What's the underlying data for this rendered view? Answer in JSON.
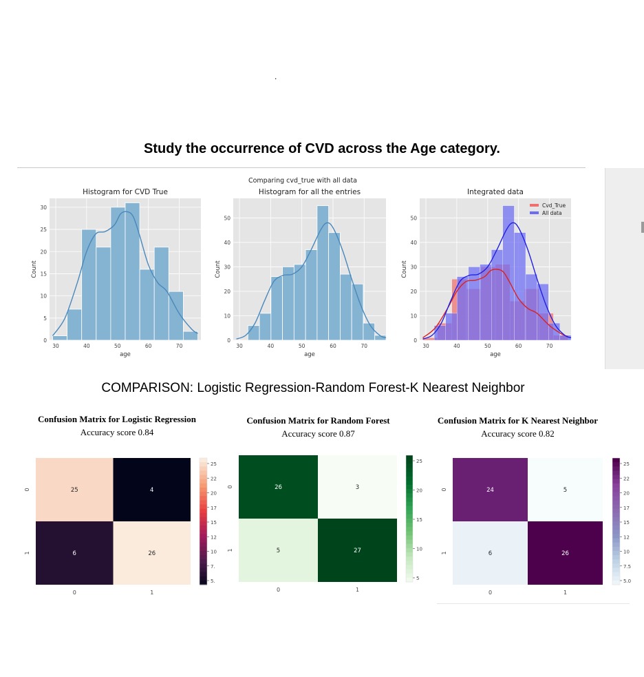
{
  "page": {
    "title": "Study the occurrence of CVD across the Age category.",
    "dot": ".",
    "comparison_heading": "COMPARISON: Logistic Regression-Random Forest-K Nearest Neighbor"
  },
  "colors": {
    "hist_bar": "#85b3d2",
    "hist_line": "#4a88bb",
    "axes_bg": "#e5e5e5",
    "red_series": "#ef6e6e",
    "blue_series": "#6c6cf5",
    "red_line": "#d92323",
    "blue_line": "#2020e0"
  },
  "chart_data": [
    {
      "type": "bar",
      "subtype": "histogram",
      "suptitle": "Comparing cvd_true with all data",
      "title": "Histogram for CVD True",
      "xlabel": "age",
      "ylabel": "Count",
      "xlim": [
        28,
        77
      ],
      "ylim": [
        0,
        32
      ],
      "xticks": [
        30,
        40,
        50,
        60,
        70
      ],
      "yticks": [
        0,
        5,
        10,
        15,
        20,
        25,
        30
      ],
      "bin_edges": [
        29,
        33.7,
        38.4,
        43.1,
        47.8,
        52.5,
        57.2,
        61.9,
        66.6,
        71.3,
        76
      ],
      "values": [
        1,
        7,
        25,
        21,
        30,
        31,
        16,
        21,
        11,
        2
      ],
      "kde": {
        "x": [
          29,
          33,
          37,
          40,
          43,
          46,
          49,
          51,
          53,
          55,
          57,
          60,
          63,
          66,
          70,
          74,
          76
        ],
        "y": [
          1,
          5,
          13,
          20,
          24,
          24.5,
          26,
          28.5,
          29,
          28,
          24,
          17,
          13,
          11,
          6,
          2.5,
          1.5
        ]
      },
      "grid": true
    },
    {
      "type": "bar",
      "subtype": "histogram",
      "title": "Histogram for all the entries",
      "xlabel": "age",
      "ylabel": "Count",
      "xlim": [
        28,
        77
      ],
      "ylim": [
        0,
        58
      ],
      "xticks": [
        30,
        40,
        50,
        60,
        70
      ],
      "yticks": [
        0,
        10,
        20,
        30,
        40,
        50
      ],
      "bin_edges": [
        29,
        32.7,
        36.4,
        40.1,
        43.8,
        47.5,
        51.2,
        54.9,
        58.6,
        62.3,
        66,
        69.7,
        73.4,
        77
      ],
      "values": [
        0,
        6,
        11,
        26,
        30,
        31,
        37,
        55,
        44,
        27,
        23,
        7,
        2
      ],
      "kde": {
        "x": [
          29,
          32,
          35,
          38,
          41,
          44,
          47,
          50,
          53,
          56,
          58,
          60,
          63,
          66,
          69,
          72,
          75,
          77
        ],
        "y": [
          0.5,
          2,
          7,
          16,
          24,
          26.5,
          27,
          30,
          37,
          45,
          48,
          46,
          37,
          25,
          14,
          6,
          2,
          1
        ]
      },
      "grid": true
    },
    {
      "type": "bar",
      "subtype": "histogram-overlay",
      "title": "Integrated data",
      "xlabel": "age",
      "ylabel": "Count",
      "xlim": [
        28,
        77
      ],
      "ylim": [
        0,
        58
      ],
      "xticks": [
        30,
        40,
        50,
        60,
        70
      ],
      "yticks": [
        0,
        10,
        20,
        30,
        40,
        50
      ],
      "legend_placement": "top-right",
      "series": [
        {
          "name": "Cvd_True",
          "bin_edges": [
            29,
            33.7,
            38.4,
            43.1,
            47.8,
            52.5,
            57.2,
            61.9,
            66.6,
            71.3,
            76
          ],
          "values": [
            1,
            7,
            25,
            21,
            30,
            31,
            16,
            21,
            11,
            2
          ],
          "kde": {
            "x": [
              29,
              33,
              37,
              40,
              43,
              46,
              49,
              51,
              53,
              55,
              57,
              60,
              63,
              66,
              70,
              74,
              76
            ],
            "y": [
              1,
              5,
              13,
              20,
              24,
              24.5,
              26,
              28.5,
              29,
              28,
              24,
              17,
              13,
              11,
              6,
              2.5,
              1.5
            ]
          }
        },
        {
          "name": "All data",
          "bin_edges": [
            29,
            32.7,
            36.4,
            40.1,
            43.8,
            47.5,
            51.2,
            54.9,
            58.6,
            62.3,
            66,
            69.7,
            73.4,
            77
          ],
          "values": [
            0,
            6,
            11,
            26,
            30,
            31,
            37,
            55,
            44,
            27,
            23,
            7,
            2
          ],
          "kde": {
            "x": [
              29,
              32,
              35,
              38,
              41,
              44,
              47,
              50,
              53,
              56,
              58,
              60,
              63,
              66,
              69,
              72,
              75,
              77
            ],
            "y": [
              0.5,
              2,
              7,
              16,
              24,
              26.5,
              27,
              30,
              37,
              45,
              48,
              46,
              37,
              25,
              14,
              6,
              2,
              1
            ]
          }
        }
      ],
      "grid": true
    },
    {
      "type": "heatmap",
      "title": "Confusion Matrix for Logistic Regression",
      "subtitle": "Accuracy score 0.84",
      "rows": [
        "0",
        "1"
      ],
      "cols": [
        "0",
        "1"
      ],
      "values": [
        [
          25,
          4
        ],
        [
          6,
          26
        ]
      ],
      "colormap": "rocket",
      "colorbar_ticks": [
        "25",
        "22",
        "20",
        "17",
        "15",
        "12",
        "10",
        "7.",
        "5."
      ]
    },
    {
      "type": "heatmap",
      "title": "Confusion Matrix for Random Forest",
      "subtitle": "Accuracy score 0.87",
      "rows": [
        "0",
        "1"
      ],
      "cols": [
        "0",
        "1"
      ],
      "values": [
        [
          26,
          3
        ],
        [
          5,
          27
        ]
      ],
      "colormap": "Greens",
      "colorbar_ticks": [
        "25",
        "20",
        "15",
        "10",
        "5"
      ]
    },
    {
      "type": "heatmap",
      "title": "Confusion Matrix for K Nearest Neighbor",
      "subtitle": "Accuracy score 0.82",
      "rows": [
        "0",
        "1"
      ],
      "cols": [
        "0",
        "1"
      ],
      "values": [
        [
          24,
          5
        ],
        [
          6,
          26
        ]
      ],
      "colormap": "BuPu",
      "colorbar_ticks": [
        "25",
        "22",
        "20",
        "17",
        "15",
        "12",
        "10",
        "7.5",
        "5.0"
      ]
    }
  ]
}
